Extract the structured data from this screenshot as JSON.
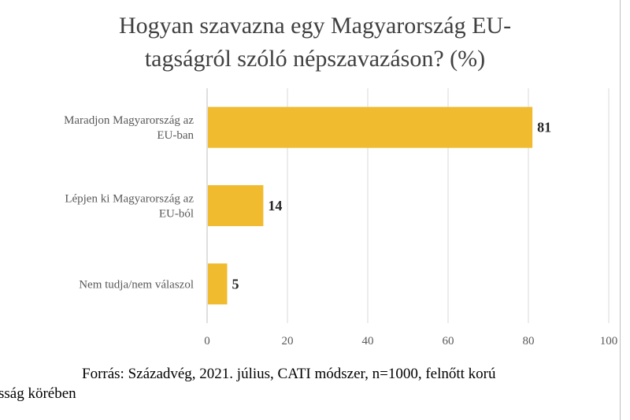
{
  "colors": {
    "bar": "#F0BB2E",
    "grid": "#D9D9D9",
    "axis": "#BFBFBF"
  },
  "source": {
    "line1": "Forrás: Századvég, 2021. július, CATI módszer, n=1000, felnőtt korú",
    "line2": "sság körében"
  },
  "chart_data": {
    "type": "bar",
    "orientation": "horizontal",
    "title_lines": [
      "Hogyan szavazna egy Magyarország EU-",
      "tagságról szóló népszavazáson? (%)"
    ],
    "categories": [
      [
        "Maradjon Magyarország az",
        "EU-ban"
      ],
      [
        "Lépjen ki Magyarország az",
        "EU-ból"
      ],
      [
        "Nem tudja/nem válaszol"
      ]
    ],
    "values": [
      81,
      14,
      5
    ],
    "xlim": [
      0,
      100
    ],
    "ticks": [
      0,
      20,
      40,
      60,
      80,
      100
    ],
    "grid": true,
    "legend": "none"
  }
}
